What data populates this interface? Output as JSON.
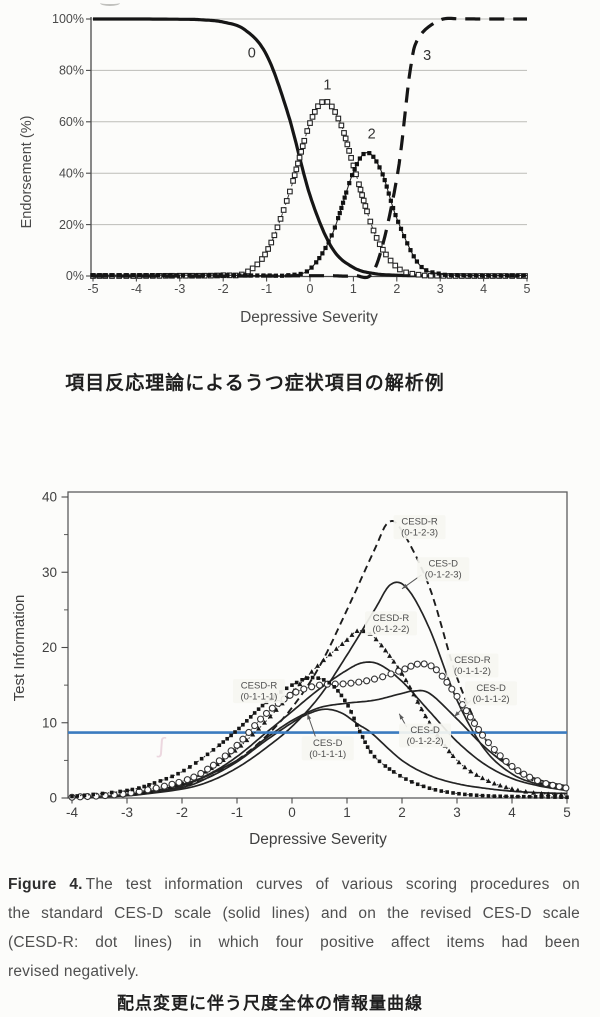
{
  "captions": {
    "top_jp": "項目反応理論によるうつ症状項目の解析例",
    "bottom_jp": "配点変更に伴う尺度全体の情報量曲線",
    "figure_label": "Figure 4.",
    "figure_lines": [
      "The test information curves of various scoring procedures on",
      "the standard CES-D scale (solid lines) and on the revised CES-D scale",
      "(CESD-R: dot lines) in which four positive affect items had been",
      "revised negatively."
    ]
  },
  "chart_data": [
    {
      "id": "item-response",
      "type": "line",
      "title": "",
      "xlabel": "Depressive Severity",
      "ylabel": "Endorsement (%)",
      "xlim": [
        -5,
        5
      ],
      "ylim": [
        0,
        100
      ],
      "grid": true,
      "xticks": [
        -5,
        -4,
        -3,
        -2,
        -1,
        0,
        1,
        2,
        3,
        4,
        5
      ],
      "yticks": [
        {
          "v": 0,
          "label": "0%"
        },
        {
          "v": 20,
          "label": "20%"
        },
        {
          "v": 40,
          "label": "40%"
        },
        {
          "v": 60,
          "label": "60%"
        },
        {
          "v": 80,
          "label": "80%"
        },
        {
          "v": 100,
          "label": "100%"
        }
      ],
      "series": [
        {
          "name": "0",
          "style": "solid-thick",
          "label_pos": [
            -1.34,
            85
          ],
          "points": [
            [
              -5,
              100
            ],
            [
              -4,
              100
            ],
            [
              -3,
              99.9
            ],
            [
              -2.5,
              99.7
            ],
            [
              -2,
              98.8
            ],
            [
              -1.5,
              95.8
            ],
            [
              -1,
              86
            ],
            [
              -0.5,
              62.7
            ],
            [
              0,
              31.4
            ],
            [
              0.5,
              11.1
            ],
            [
              1,
              3.3
            ],
            [
              1.5,
              0.9
            ],
            [
              2,
              0.3
            ],
            [
              2.5,
              0.1
            ],
            [
              3,
              0
            ],
            [
              4,
              0
            ],
            [
              5,
              0
            ]
          ]
        },
        {
          "name": "1",
          "style": "open-square",
          "label_pos": [
            0.4,
            72.5
          ],
          "points": [
            [
              -5,
              0
            ],
            [
              -4,
              0
            ],
            [
              -3,
              0.1
            ],
            [
              -2.5,
              0.1
            ],
            [
              -2,
              0.3
            ],
            [
              -1.5,
              1.1
            ],
            [
              -1,
              9.4
            ],
            [
              -0.5,
              31
            ],
            [
              0,
              59.5
            ],
            [
              0.35,
              68
            ],
            [
              0.7,
              59.5
            ],
            [
              1,
              43
            ],
            [
              1.5,
              16.2
            ],
            [
              2,
              3.5
            ],
            [
              2.5,
              0.5
            ],
            [
              3,
              0.1
            ],
            [
              3.5,
              0
            ],
            [
              4,
              0
            ],
            [
              4.5,
              0
            ],
            [
              5,
              0
            ]
          ]
        },
        {
          "name": "2",
          "style": "filled-square",
          "label_pos": [
            1.42,
            53.5
          ],
          "points": [
            [
              -5,
              0.3
            ],
            [
              -4,
              0.3
            ],
            [
              -3,
              0.3
            ],
            [
              -2,
              0.3
            ],
            [
              -1.5,
              0.2
            ],
            [
              -1,
              0.2
            ],
            [
              -0.5,
              0.3
            ],
            [
              0,
              2.7
            ],
            [
              0.5,
              15.8
            ],
            [
              1,
              40.5
            ],
            [
              1.32,
              48
            ],
            [
              1.65,
              40.5
            ],
            [
              2,
              22.4
            ],
            [
              2.5,
              4.8
            ],
            [
              3,
              0.8
            ],
            [
              3.5,
              0.3
            ],
            [
              4,
              0.2
            ],
            [
              4.5,
              0.2
            ],
            [
              5,
              0.2
            ]
          ]
        },
        {
          "name": "3",
          "style": "long-dash",
          "label_pos": [
            2.7,
            84
          ],
          "points": [
            [
              -5,
              0
            ],
            [
              -4,
              0
            ],
            [
              -3,
              0
            ],
            [
              -2,
              0
            ],
            [
              -1,
              0
            ],
            [
              0,
              0.1
            ],
            [
              0.5,
              0.1
            ],
            [
              1,
              0.2
            ],
            [
              1.5,
              3
            ],
            [
              2,
              38
            ],
            [
              2.3,
              79
            ],
            [
              2.5,
              92.6
            ],
            [
              3,
              99.6
            ],
            [
              3.5,
              100
            ],
            [
              4,
              100
            ],
            [
              4.5,
              100
            ],
            [
              5,
              100
            ]
          ]
        }
      ]
    },
    {
      "id": "test-information",
      "type": "line",
      "title": "",
      "xlabel": "Depressive Severity",
      "ylabel": "Test Information",
      "xlim": [
        -4,
        5
      ],
      "ylim": [
        0,
        40
      ],
      "grid": false,
      "xticks": [
        -4,
        -3,
        -2,
        -1,
        0,
        1,
        2,
        3,
        4,
        5
      ],
      "yticks": [
        {
          "v": 0,
          "label": "0"
        },
        {
          "v": 10,
          "label": "10"
        },
        {
          "v": 20,
          "label": "20"
        },
        {
          "v": 30,
          "label": "30"
        },
        {
          "v": 40,
          "label": "40"
        }
      ],
      "minor_yticks": [
        5,
        15,
        25,
        35
      ],
      "threshold_line": {
        "y": 8.7,
        "color": "#3b7bbf"
      },
      "series": [
        {
          "name": "CESD-R (0-1-2-3)",
          "style": "dash",
          "points": [
            [
              -4,
              0.1
            ],
            [
              -3.5,
              0.2
            ],
            [
              -3,
              0.4
            ],
            [
              -2.5,
              0.8
            ],
            [
              -2,
              1.5
            ],
            [
              -1.5,
              2.8
            ],
            [
              -1,
              5
            ],
            [
              -0.5,
              8
            ],
            [
              0,
              12
            ],
            [
              0.5,
              17.5
            ],
            [
              1,
              25
            ],
            [
              1.5,
              33
            ],
            [
              1.75,
              36.6
            ],
            [
              2,
              35.5
            ],
            [
              2.5,
              28
            ],
            [
              3,
              16
            ],
            [
              3.5,
              8
            ],
            [
              4,
              4
            ],
            [
              4.5,
              2
            ],
            [
              5,
              1.2
            ]
          ]
        },
        {
          "name": "CES-D (0-1-2-3)",
          "style": "solid",
          "points": [
            [
              -4,
              0.1
            ],
            [
              -3,
              0.3
            ],
            [
              -2,
              1.2
            ],
            [
              -1.5,
              2.2
            ],
            [
              -1,
              4
            ],
            [
              -0.5,
              6.5
            ],
            [
              0,
              9.5
            ],
            [
              0.5,
              13.5
            ],
            [
              1,
              19
            ],
            [
              1.5,
              25
            ],
            [
              1.8,
              28.4
            ],
            [
              2.1,
              27.8
            ],
            [
              2.5,
              22.5
            ],
            [
              3,
              13
            ],
            [
              3.5,
              6.5
            ],
            [
              4,
              3.2
            ],
            [
              4.5,
              1.8
            ],
            [
              5,
              1.2
            ]
          ]
        },
        {
          "name": "CESD-R (0-1-2-2)",
          "style": "dot-triangle",
          "points": [
            [
              -4,
              0.1
            ],
            [
              -3,
              0.5
            ],
            [
              -2.5,
              1
            ],
            [
              -2,
              2
            ],
            [
              -1.5,
              3.8
            ],
            [
              -1,
              6.5
            ],
            [
              -0.5,
              10
            ],
            [
              0,
              14
            ],
            [
              0.5,
              17.8
            ],
            [
              1,
              21
            ],
            [
              1.2,
              22.2
            ],
            [
              1.5,
              21.3
            ],
            [
              2,
              16.5
            ],
            [
              2.5,
              10
            ],
            [
              3,
              5
            ],
            [
              3.5,
              2.5
            ],
            [
              4,
              1.2
            ],
            [
              4.5,
              0.6
            ],
            [
              5,
              0.4
            ]
          ]
        },
        {
          "name": "CES-D (0-1-2-2)",
          "style": "solid",
          "points": [
            [
              -4,
              0.1
            ],
            [
              -3,
              0.4
            ],
            [
              -2,
              1.8
            ],
            [
              -1.5,
              3.2
            ],
            [
              -1,
              5.5
            ],
            [
              -0.5,
              8.5
            ],
            [
              0,
              11.5
            ],
            [
              0.5,
              14.5
            ],
            [
              1,
              17
            ],
            [
              1.3,
              18
            ],
            [
              1.6,
              17.7
            ],
            [
              2,
              15.5
            ],
            [
              2.5,
              11.5
            ],
            [
              3,
              7.5
            ],
            [
              3.5,
              4.5
            ],
            [
              4,
              2.6
            ],
            [
              4.5,
              1.6
            ],
            [
              5,
              1
            ]
          ]
        },
        {
          "name": "CESD-R (0-1-1-2)",
          "style": "open-circle",
          "points": [
            [
              -4,
              0.1
            ],
            [
              -3,
              0.6
            ],
            [
              -2,
              2.2
            ],
            [
              -1.5,
              4
            ],
            [
              -1,
              7
            ],
            [
              -0.5,
              11
            ],
            [
              0,
              13.8
            ],
            [
              0.5,
              15
            ],
            [
              1,
              15.2
            ],
            [
              1.5,
              15.8
            ],
            [
              2,
              17
            ],
            [
              2.3,
              17.8
            ],
            [
              2.6,
              17.2
            ],
            [
              3,
              13.5
            ],
            [
              3.5,
              8
            ],
            [
              4,
              4.2
            ],
            [
              4.5,
              2.2
            ],
            [
              5,
              1.3
            ]
          ]
        },
        {
          "name": "CES-D (0-1-1-2)",
          "style": "solid",
          "points": [
            [
              -4,
              0.1
            ],
            [
              -3,
              0.4
            ],
            [
              -2,
              1.6
            ],
            [
              -1,
              5
            ],
            [
              -0.5,
              7.8
            ],
            [
              0,
              10.3
            ],
            [
              0.5,
              12
            ],
            [
              1,
              12.6
            ],
            [
              1.5,
              13
            ],
            [
              2,
              13.9
            ],
            [
              2.2,
              14.2
            ],
            [
              2.5,
              13.9
            ],
            [
              3,
              10.5
            ],
            [
              3.5,
              6.8
            ],
            [
              4,
              4
            ],
            [
              4.5,
              2.4
            ],
            [
              5,
              1.6
            ]
          ]
        },
        {
          "name": "CESD-R (0-1-1-1)",
          "style": "dot-square",
          "points": [
            [
              -4,
              0.2
            ],
            [
              -3,
              1
            ],
            [
              -2.5,
              2
            ],
            [
              -2,
              3.5
            ],
            [
              -1.5,
              6
            ],
            [
              -1,
              9
            ],
            [
              -0.5,
              12.5
            ],
            [
              0,
              15
            ],
            [
              0.35,
              16
            ],
            [
              0.7,
              15.2
            ],
            [
              1,
              12.5
            ],
            [
              1.25,
              8.6
            ],
            [
              1.5,
              5.5
            ],
            [
              2,
              2.8
            ],
            [
              2.5,
              1.3
            ],
            [
              3,
              0.6
            ],
            [
              3.5,
              0.3
            ],
            [
              4,
              0.2
            ],
            [
              4.5,
              0.15
            ],
            [
              5,
              0.1
            ]
          ]
        },
        {
          "name": "CES-D (0-1-1-1)",
          "style": "solid",
          "points": [
            [
              -4,
              0.1
            ],
            [
              -3,
              0.3
            ],
            [
              -2,
              1.4
            ],
            [
              -1.5,
              2.8
            ],
            [
              -1,
              4.8
            ],
            [
              -0.5,
              7.5
            ],
            [
              0,
              10
            ],
            [
              0.3,
              11.2
            ],
            [
              0.6,
              11.8
            ],
            [
              0.9,
              11.3
            ],
            [
              1.2,
              9.8
            ],
            [
              1.45,
              8.6
            ],
            [
              2,
              5
            ],
            [
              2.5,
              3
            ],
            [
              3,
              1.9
            ],
            [
              3.5,
              1.3
            ],
            [
              4,
              0.9
            ],
            [
              4.5,
              0.7
            ],
            [
              5,
              0.6
            ]
          ]
        }
      ],
      "annotations": [
        {
          "line1": "CESD-R",
          "line2": "(0-1-2-3)",
          "x": 2.32,
          "y": 36.0,
          "arrow": null
        },
        {
          "line1": "CES-D",
          "line2": "(0-1-2-3)",
          "x": 2.75,
          "y": 30.4,
          "arrow": [
            2.0,
            27.8
          ]
        },
        {
          "line1": "CESD-R",
          "line2": "(0-1-2-2)",
          "x": 1.8,
          "y": 23.2,
          "arrow": null
        },
        {
          "line1": "CESD-R",
          "line2": "(0-1-1-2)",
          "x": 3.28,
          "y": 17.6,
          "arrow": null
        },
        {
          "line1": "CES-D",
          "line2": "(0-1-1-2)",
          "x": 3.62,
          "y": 13.9,
          "arrow": [
            2.95,
            10.8
          ]
        },
        {
          "line1": "CESD-R",
          "line2": "(0-1-1-1)",
          "x": -0.6,
          "y": 14.2,
          "arrow": null
        },
        {
          "line1": "CES-D",
          "line2": "(0-1-1-1)",
          "x": 0.65,
          "y": 6.6,
          "arrow": [
            0.28,
            11.2
          ]
        },
        {
          "line1": "CES-D",
          "line2": "(0-1-2-2)",
          "x": 2.42,
          "y": 8.3,
          "arrow": [
            1.95,
            11.2
          ]
        }
      ]
    }
  ]
}
